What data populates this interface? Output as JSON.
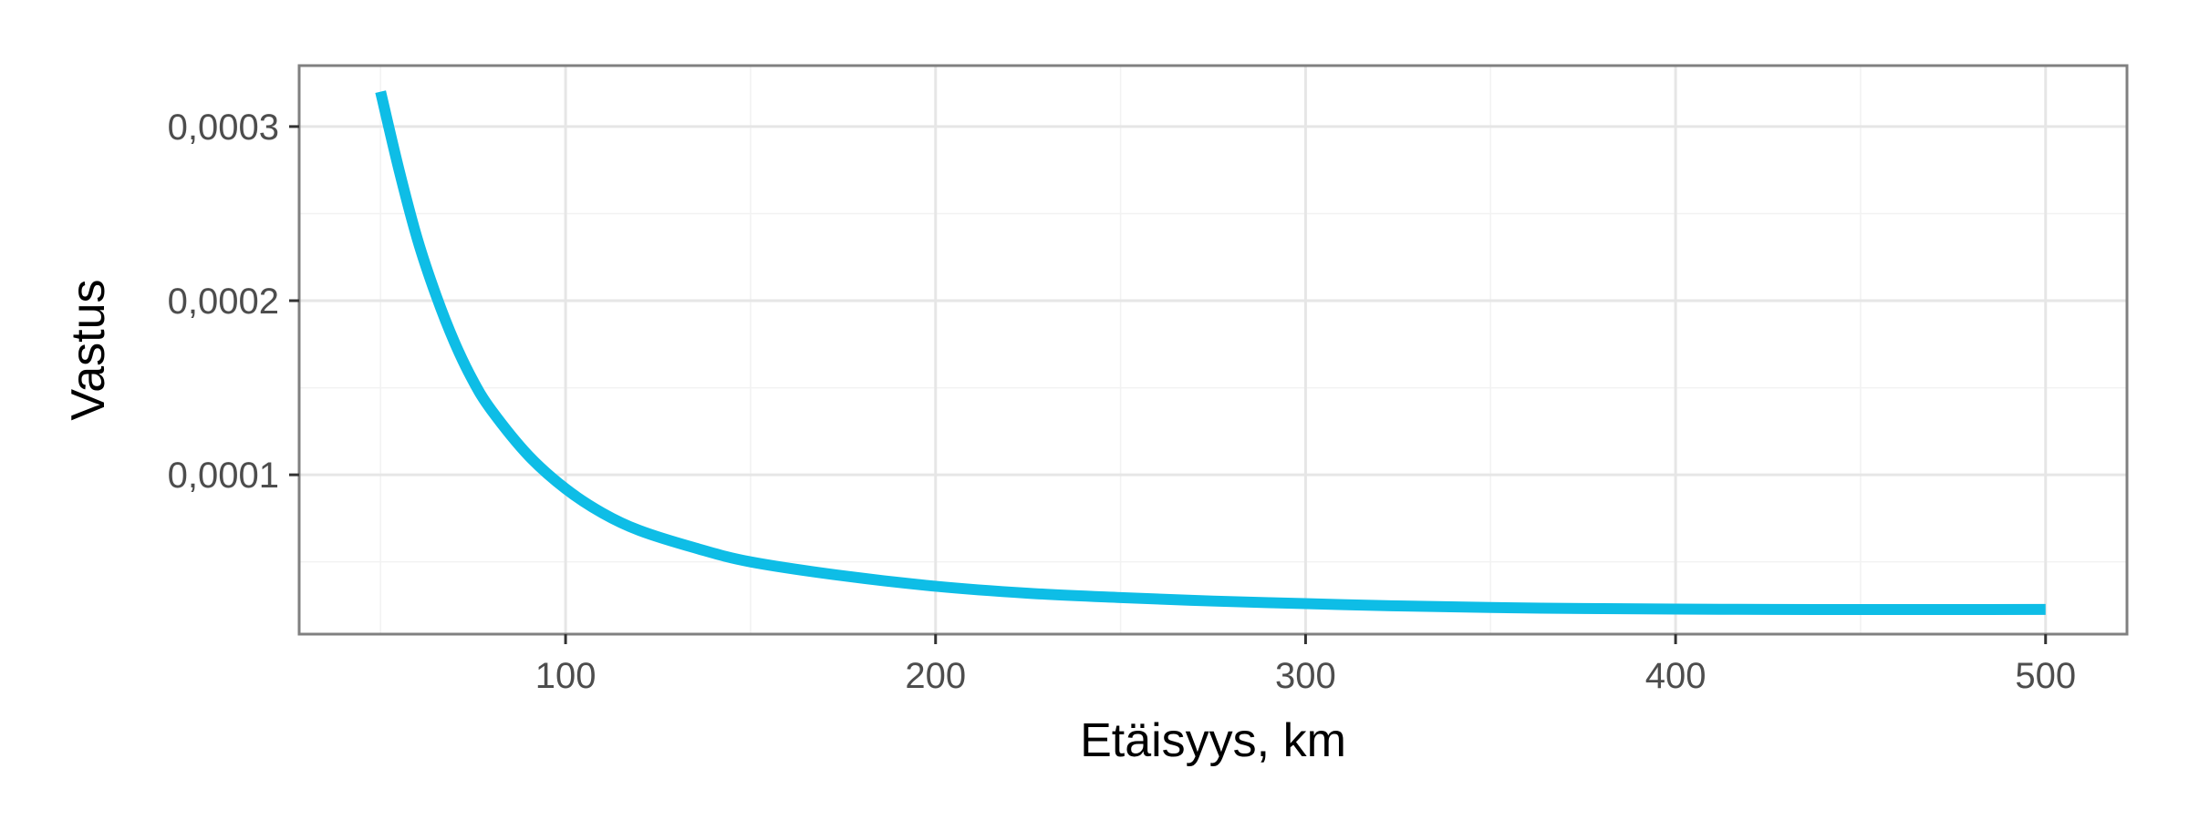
{
  "chart_data": {
    "type": "line",
    "title": "",
    "xlabel": "Etäisyys, km",
    "ylabel": "Vastus",
    "xlim": [
      28,
      522
    ],
    "ylim": [
      8.5e-06,
      0.000335
    ],
    "x_ticks": [
      100,
      200,
      300,
      400,
      500
    ],
    "x_tick_labels": [
      "100",
      "200",
      "300",
      "400",
      "500"
    ],
    "y_ticks": [
      0.0001,
      0.0002,
      0.0003
    ],
    "y_tick_labels": [
      "0,0001",
      "0,0002",
      "0,0003"
    ],
    "grid": true,
    "legend": "none",
    "series": [
      {
        "color": "#0ebde6",
        "x": [
          50,
          55,
          60,
          65,
          70,
          75,
          80,
          90,
          100,
          110,
          120,
          135,
          150,
          175,
          200,
          225,
          250,
          275,
          300,
          325,
          350,
          375,
          400,
          425,
          450,
          475,
          500
        ],
        "y": [
          0.00032,
          0.000275,
          0.000235,
          0.000203,
          0.000176,
          0.000154,
          0.000137,
          0.000111,
          9.2e-05,
          7.8e-05,
          6.8e-05,
          5.8e-05,
          5e-05,
          4.2e-05,
          3.6e-05,
          3.2e-05,
          2.95e-05,
          2.75e-05,
          2.6e-05,
          2.47e-05,
          2.38e-05,
          2.32e-05,
          2.29e-05,
          2.27e-05,
          2.26e-05,
          2.26e-05,
          2.27e-05
        ]
      }
    ]
  },
  "colors": {
    "line": "#0ebde6",
    "grid": "#e6e6e6",
    "panel_border": "#808080",
    "tick_label": "#4d4d4d"
  }
}
